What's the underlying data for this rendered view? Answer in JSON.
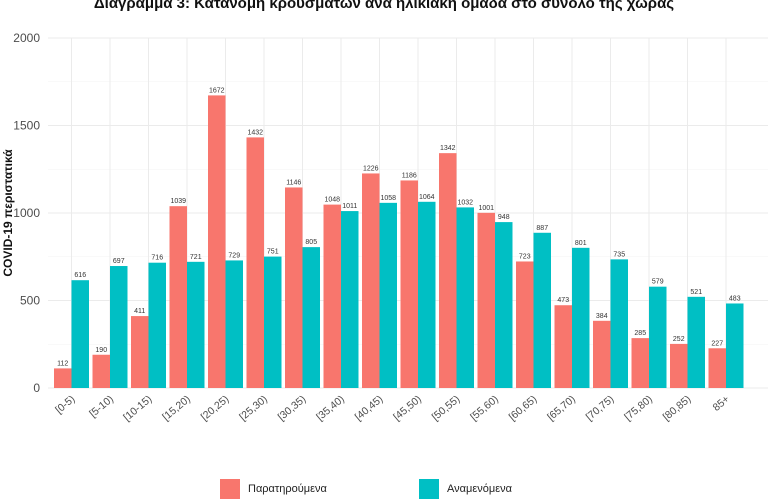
{
  "chart_data": {
    "type": "bar",
    "title": "Διάγραμμα 3: Κατανομή κρουσμάτων ανά ηλικιακή ομάδα στο σύνολο της χώρας",
    "xlabel": "",
    "ylabel": "COVID-19 περιστατικά",
    "ylim": [
      0,
      2000
    ],
    "yticks": [
      0,
      500,
      1000,
      1500,
      2000
    ],
    "grid": true,
    "legend_position": "bottom",
    "categories": [
      "[0-5)",
      "[5-10)",
      "[10-15)",
      "[15,20)",
      "[20,25)",
      "[25,30)",
      "[30,35)",
      "[35,40)",
      "[40,45)",
      "[45,50)",
      "[50,55)",
      "[55,60)",
      "[60,65)",
      "[65,70)",
      "[70,75)",
      "[75,80)",
      "[80,85)",
      "85+"
    ],
    "series": [
      {
        "name": "Παρατηρούμενα",
        "color": "#f8766d",
        "values": [
          112,
          190,
          411,
          1039,
          1672,
          1432,
          1146,
          1048,
          1226,
          1186,
          1342,
          1001,
          723,
          473,
          384,
          285,
          252,
          227
        ]
      },
      {
        "name": "Αναμενόμενα",
        "color": "#00bfc4",
        "values": [
          616,
          697,
          716,
          721,
          729,
          751,
          805,
          1011,
          1058,
          1064,
          1032,
          948,
          887,
          801,
          735,
          579,
          521,
          483
        ]
      }
    ]
  }
}
